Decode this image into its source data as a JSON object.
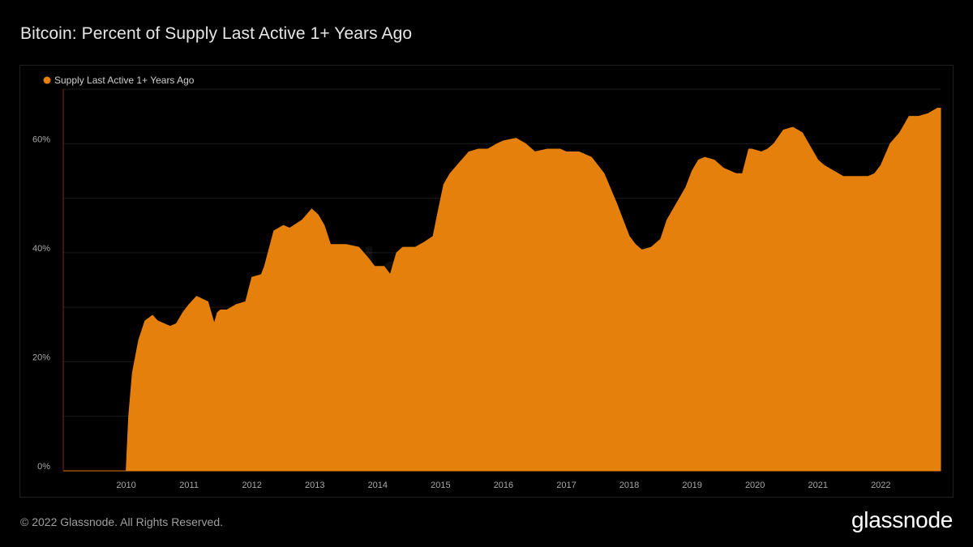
{
  "title": "Bitcoin: Percent of Supply Last Active 1+ Years Ago",
  "footer": {
    "copyright": "© 2022 Glassnode. All Rights Reserved.",
    "brand": "glassnode"
  },
  "watermark": "glassnode",
  "colors": {
    "background": "#000000",
    "series": "#e5800c",
    "grid": "#1c1c1c",
    "axis_marker": "#7a2e12"
  },
  "chart_data": {
    "type": "area",
    "title": "Bitcoin: Percent of Supply Last Active 1+ Years Ago",
    "xlabel": "",
    "ylabel": "",
    "x_unit": "year",
    "xlim": [
      2009.0,
      2022.95
    ],
    "ylim": [
      0,
      0.7
    ],
    "y_ticks": [
      0,
      0.2,
      0.4,
      0.6
    ],
    "y_tick_labels": [
      "0%",
      "20%",
      "40%",
      "60%"
    ],
    "x_ticks": [
      2010,
      2011,
      2012,
      2013,
      2014,
      2015,
      2016,
      2017,
      2018,
      2019,
      2020,
      2021,
      2022
    ],
    "x_tick_labels": [
      "2010",
      "2011",
      "2012",
      "2013",
      "2014",
      "2015",
      "2016",
      "2017",
      "2018",
      "2019",
      "2020",
      "2021",
      "2022"
    ],
    "grid": true,
    "legend_position": "top-left",
    "series": [
      {
        "name": "Supply Last Active 1+ Years Ago",
        "color": "#e5800c",
        "x": [
          2009.0,
          2010.0,
          2010.04,
          2010.1,
          2010.2,
          2010.3,
          2010.42,
          2010.5,
          2010.6,
          2010.7,
          2010.8,
          2010.9,
          2011.0,
          2011.12,
          2011.3,
          2011.4,
          2011.45,
          2011.5,
          2011.6,
          2011.75,
          2011.9,
          2012.0,
          2012.15,
          2012.2,
          2012.35,
          2012.5,
          2012.6,
          2012.8,
          2012.95,
          2013.05,
          2013.15,
          2013.25,
          2013.35,
          2013.5,
          2013.7,
          2013.85,
          2013.95,
          2014.1,
          2014.2,
          2014.3,
          2014.4,
          2014.6,
          2014.75,
          2014.88,
          2014.95,
          2015.05,
          2015.15,
          2015.3,
          2015.45,
          2015.6,
          2015.75,
          2015.9,
          2016.0,
          2016.2,
          2016.35,
          2016.5,
          2016.7,
          2016.9,
          2017.0,
          2017.2,
          2017.4,
          2017.5,
          2017.6,
          2017.8,
          2017.9,
          2018.0,
          2018.1,
          2018.2,
          2018.35,
          2018.5,
          2018.6,
          2018.8,
          2018.9,
          2019.0,
          2019.1,
          2019.2,
          2019.35,
          2019.5,
          2019.6,
          2019.7,
          2019.8,
          2019.9,
          2019.95,
          2020.1,
          2020.2,
          2020.3,
          2020.45,
          2020.6,
          2020.75,
          2020.85,
          2021.0,
          2021.1,
          2021.25,
          2021.4,
          2021.5,
          2021.65,
          2021.8,
          2021.9,
          2022.0,
          2022.15,
          2022.3,
          2022.45,
          2022.6,
          2022.75,
          2022.9,
          2022.95
        ],
        "y": [
          0,
          0,
          0.1,
          0.18,
          0.24,
          0.275,
          0.285,
          0.275,
          0.27,
          0.265,
          0.27,
          0.29,
          0.305,
          0.32,
          0.31,
          0.27,
          0.29,
          0.295,
          0.295,
          0.305,
          0.31,
          0.355,
          0.36,
          0.375,
          0.44,
          0.45,
          0.445,
          0.46,
          0.48,
          0.47,
          0.45,
          0.415,
          0.415,
          0.415,
          0.41,
          0.39,
          0.375,
          0.375,
          0.36,
          0.4,
          0.41,
          0.41,
          0.42,
          0.43,
          0.47,
          0.525,
          0.545,
          0.565,
          0.585,
          0.59,
          0.59,
          0.6,
          0.605,
          0.61,
          0.6,
          0.585,
          0.59,
          0.59,
          0.585,
          0.585,
          0.575,
          0.56,
          0.545,
          0.49,
          0.46,
          0.43,
          0.415,
          0.405,
          0.41,
          0.425,
          0.46,
          0.5,
          0.52,
          0.55,
          0.57,
          0.575,
          0.57,
          0.555,
          0.55,
          0.545,
          0.545,
          0.59,
          0.59,
          0.585,
          0.59,
          0.6,
          0.625,
          0.63,
          0.62,
          0.6,
          0.57,
          0.56,
          0.55,
          0.54,
          0.54,
          0.54,
          0.54,
          0.545,
          0.56,
          0.6,
          0.62,
          0.65,
          0.65,
          0.655,
          0.665,
          0.665
        ]
      }
    ]
  }
}
